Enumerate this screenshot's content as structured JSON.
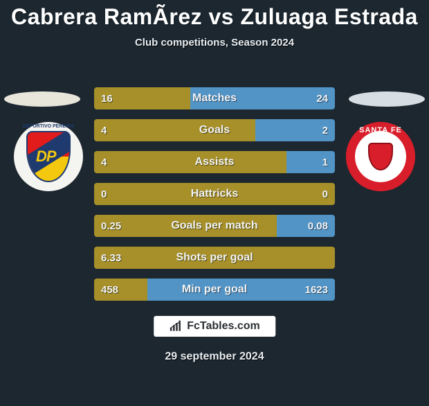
{
  "title": "Cabrera RamÃ­rez vs Zuluaga Estrada",
  "subtitle": "Club competitions, Season 2024",
  "date": "29 september 2024",
  "brand": "FcTables.com",
  "colors": {
    "background": "#1c2730",
    "left_bar": "#a79029",
    "right_bar": "#5394c6",
    "ellipse_left": "#e8e6da",
    "ellipse_right": "#d6dee4",
    "text": "#ffffff"
  },
  "badges": {
    "left": {
      "name": "Deportivo Pereira",
      "dp_text": "DP",
      "arc_text": "DEPORTIVO PEREIRA"
    },
    "right": {
      "name": "Santa Fe",
      "arc_text": "SANTA FE"
    }
  },
  "bar_style": {
    "height": 32,
    "gap": 14,
    "radius": 4,
    "label_fontsize": 16,
    "value_fontsize": 15,
    "font_weight": 700
  },
  "stats": [
    {
      "label": "Matches",
      "left_val": "16",
      "right_val": "24",
      "left_pct": 40,
      "right_pct": 60
    },
    {
      "label": "Goals",
      "left_val": "4",
      "right_val": "2",
      "left_pct": 67,
      "right_pct": 33
    },
    {
      "label": "Assists",
      "left_val": "4",
      "right_val": "1",
      "left_pct": 80,
      "right_pct": 20
    },
    {
      "label": "Hattricks",
      "left_val": "0",
      "right_val": "0",
      "left_pct": 100,
      "right_pct": 0
    },
    {
      "label": "Goals per match",
      "left_val": "0.25",
      "right_val": "0.08",
      "left_pct": 76,
      "right_pct": 24
    },
    {
      "label": "Shots per goal",
      "left_val": "6.33",
      "right_val": "",
      "left_pct": 100,
      "right_pct": 0
    },
    {
      "label": "Min per goal",
      "left_val": "458",
      "right_val": "1623",
      "left_pct": 22,
      "right_pct": 78
    }
  ]
}
